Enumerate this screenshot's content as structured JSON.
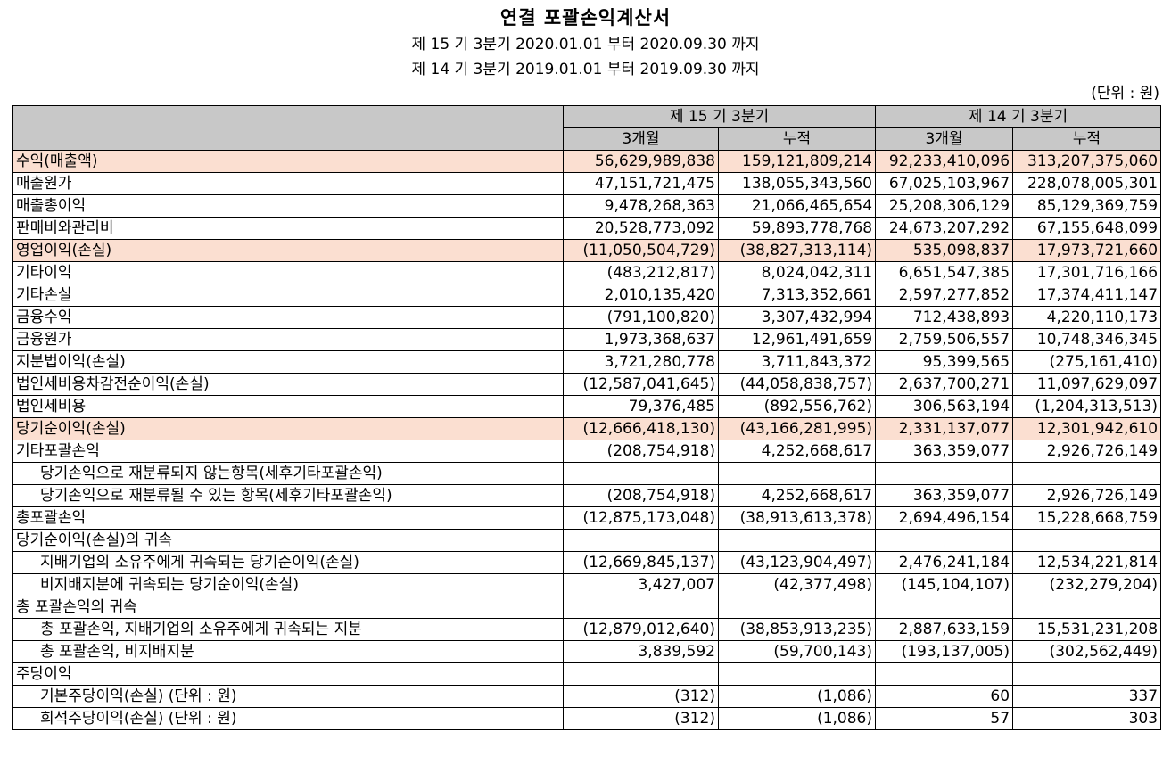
{
  "title": "연결 포괄손익계산서",
  "periods": [
    "제 15 기 3분기 2020.01.01 부터 2020.09.30 까지",
    "제 14 기 3분기 2019.01.01 부터 2019.09.30 까지"
  ],
  "unit": "(단위 : 원)",
  "table": {
    "groups": [
      "제 15 기 3분기",
      "제 14 기 3분기"
    ],
    "subheaders": [
      "3개월",
      "누적",
      "3개월",
      "누적"
    ],
    "rows": [
      {
        "label": "수익(매출액)",
        "indent": false,
        "highlight": true,
        "values": [
          "56,629,989,838",
          "159,121,809,214",
          "92,233,410,096",
          "313,207,375,060"
        ]
      },
      {
        "label": "매출원가",
        "indent": false,
        "highlight": false,
        "values": [
          "47,151,721,475",
          "138,055,343,560",
          "67,025,103,967",
          "228,078,005,301"
        ]
      },
      {
        "label": "매출총이익",
        "indent": false,
        "highlight": false,
        "values": [
          "9,478,268,363",
          "21,066,465,654",
          "25,208,306,129",
          "85,129,369,759"
        ]
      },
      {
        "label": "판매비와관리비",
        "indent": false,
        "highlight": false,
        "values": [
          "20,528,773,092",
          "59,893,778,768",
          "24,673,207,292",
          "67,155,648,099"
        ]
      },
      {
        "label": "영업이익(손실)",
        "indent": false,
        "highlight": true,
        "values": [
          "(11,050,504,729)",
          "(38,827,313,114)",
          "535,098,837",
          "17,973,721,660"
        ]
      },
      {
        "label": "기타이익",
        "indent": false,
        "highlight": false,
        "values": [
          "(483,212,817)",
          "8,024,042,311",
          "6,651,547,385",
          "17,301,716,166"
        ]
      },
      {
        "label": "기타손실",
        "indent": false,
        "highlight": false,
        "values": [
          "2,010,135,420",
          "7,313,352,661",
          "2,597,277,852",
          "17,374,411,147"
        ]
      },
      {
        "label": "금융수익",
        "indent": false,
        "highlight": false,
        "values": [
          "(791,100,820)",
          "3,307,432,994",
          "712,438,893",
          "4,220,110,173"
        ]
      },
      {
        "label": "금융원가",
        "indent": false,
        "highlight": false,
        "values": [
          "1,973,368,637",
          "12,961,491,659",
          "2,759,506,557",
          "10,748,346,345"
        ]
      },
      {
        "label": "지분법이익(손실)",
        "indent": false,
        "highlight": false,
        "values": [
          "3,721,280,778",
          "3,711,843,372",
          "95,399,565",
          "(275,161,410)"
        ]
      },
      {
        "label": "법인세비용차감전순이익(손실)",
        "indent": false,
        "highlight": false,
        "values": [
          "(12,587,041,645)",
          "(44,058,838,757)",
          "2,637,700,271",
          "11,097,629,097"
        ]
      },
      {
        "label": "법인세비용",
        "indent": false,
        "highlight": false,
        "values": [
          "79,376,485",
          "(892,556,762)",
          "306,563,194",
          "(1,204,313,513)"
        ]
      },
      {
        "label": "당기순이익(손실)",
        "indent": false,
        "highlight": true,
        "values": [
          "(12,666,418,130)",
          "(43,166,281,995)",
          "2,331,137,077",
          "12,301,942,610"
        ]
      },
      {
        "label": "기타포괄손익",
        "indent": false,
        "highlight": false,
        "values": [
          "(208,754,918)",
          "4,252,668,617",
          "363,359,077",
          "2,926,726,149"
        ]
      },
      {
        "label": "당기손익으로 재분류되지 않는항목(세후기타포괄손익)",
        "indent": true,
        "highlight": false,
        "values": [
          "",
          "",
          "",
          ""
        ]
      },
      {
        "label": "당기손익으로 재분류될 수 있는 항목(세후기타포괄손익)",
        "indent": true,
        "highlight": false,
        "values": [
          "(208,754,918)",
          "4,252,668,617",
          "363,359,077",
          "2,926,726,149"
        ]
      },
      {
        "label": "총포괄손익",
        "indent": false,
        "highlight": false,
        "values": [
          "(12,875,173,048)",
          "(38,913,613,378)",
          "2,694,496,154",
          "15,228,668,759"
        ]
      },
      {
        "label": "당기순이익(손실)의 귀속",
        "indent": false,
        "highlight": false,
        "values": [
          "",
          "",
          "",
          ""
        ]
      },
      {
        "label": "지배기업의 소유주에게 귀속되는 당기순이익(손실)",
        "indent": true,
        "highlight": false,
        "values": [
          "(12,669,845,137)",
          "(43,123,904,497)",
          "2,476,241,184",
          "12,534,221,814"
        ]
      },
      {
        "label": "비지배지분에 귀속되는 당기순이익(손실)",
        "indent": true,
        "highlight": false,
        "values": [
          "3,427,007",
          "(42,377,498)",
          "(145,104,107)",
          "(232,279,204)"
        ]
      },
      {
        "label": "총 포괄손익의 귀속",
        "indent": false,
        "highlight": false,
        "values": [
          "",
          "",
          "",
          ""
        ]
      },
      {
        "label": "총 포괄손익, 지배기업의 소유주에게 귀속되는 지분",
        "indent": true,
        "highlight": false,
        "values": [
          "(12,879,012,640)",
          "(38,853,913,235)",
          "2,887,633,159",
          "15,531,231,208"
        ]
      },
      {
        "label": "총 포괄손익, 비지배지분",
        "indent": true,
        "highlight": false,
        "values": [
          "3,839,592",
          "(59,700,143)",
          "(193,137,005)",
          "(302,562,449)"
        ]
      },
      {
        "label": "주당이익",
        "indent": false,
        "highlight": false,
        "values": [
          "",
          "",
          "",
          ""
        ]
      },
      {
        "label": "기본주당이익(손실) (단위 : 원)",
        "indent": true,
        "highlight": false,
        "values": [
          "(312)",
          "(1,086)",
          "60",
          "337"
        ]
      },
      {
        "label": "희석주당이익(손실) (단위 : 원)",
        "indent": true,
        "highlight": false,
        "values": [
          "(312)",
          "(1,086)",
          "57",
          "303"
        ]
      }
    ]
  }
}
